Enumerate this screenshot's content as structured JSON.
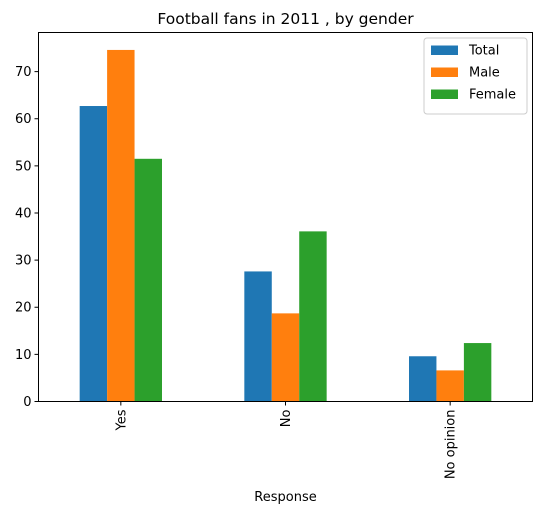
{
  "chart_data": {
    "type": "bar",
    "title": "Football fans in 2011 , by gender",
    "xlabel": "Response",
    "ylabel": "",
    "categories": [
      "Yes",
      "No",
      "No opinion"
    ],
    "series": [
      {
        "name": "Total",
        "color": "#1f77b4",
        "values": [
          62.7,
          27.6,
          9.6
        ]
      },
      {
        "name": "Male",
        "color": "#ff7f0e",
        "values": [
          74.6,
          18.7,
          6.6
        ]
      },
      {
        "name": "Female",
        "color": "#2ca02c",
        "values": [
          51.5,
          36.1,
          12.4
        ]
      }
    ],
    "ylim": [
      0,
      78.3
    ],
    "yticks": [
      0,
      10,
      20,
      30,
      40,
      50,
      60,
      70
    ],
    "grid": false,
    "legend_position": "top-right",
    "tick_label_rotation": "vertical"
  }
}
